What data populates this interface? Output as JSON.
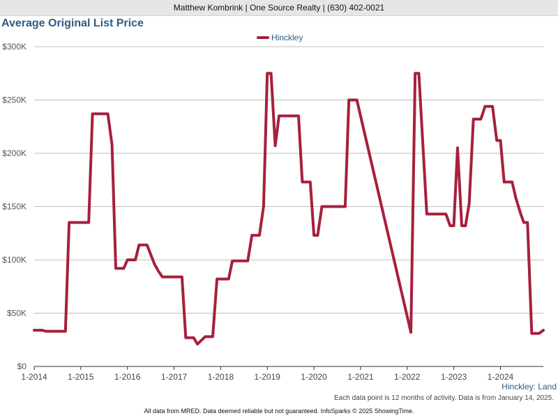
{
  "header": {
    "agent_line": "Matthew Kombrink | One Source Realty | (630) 402-0021"
  },
  "chart_data": {
    "type": "line",
    "title": "Average Original List Price",
    "xlabel": "",
    "ylabel": "",
    "ylim": [
      0,
      300000
    ],
    "xlim": [
      2014.0,
      2024.92
    ],
    "y_ticks": [
      {
        "value": 0,
        "label": "$0"
      },
      {
        "value": 50000,
        "label": "$50K"
      },
      {
        "value": 100000,
        "label": "$100K"
      },
      {
        "value": 150000,
        "label": "$150K"
      },
      {
        "value": 200000,
        "label": "$200K"
      },
      {
        "value": 250000,
        "label": "$250K"
      },
      {
        "value": 300000,
        "label": "$300K"
      }
    ],
    "x_ticks": [
      {
        "value": 2014,
        "label": "1-2014"
      },
      {
        "value": 2015,
        "label": "1-2015"
      },
      {
        "value": 2016,
        "label": "1-2016"
      },
      {
        "value": 2017,
        "label": "1-2017"
      },
      {
        "value": 2018,
        "label": "1-2018"
      },
      {
        "value": 2019,
        "label": "1-2019"
      },
      {
        "value": 2020,
        "label": "1-2020"
      },
      {
        "value": 2021,
        "label": "1-2021"
      },
      {
        "value": 2022,
        "label": "1-2022"
      },
      {
        "value": 2023,
        "label": "1-2023"
      },
      {
        "value": 2024,
        "label": "1-2024"
      }
    ],
    "grid": true,
    "legend_position": "top-center",
    "series": [
      {
        "name": "Hinckley",
        "color": "#a6203c",
        "points": [
          [
            2014.0,
            34000
          ],
          [
            2014.17,
            34000
          ],
          [
            2014.25,
            33000
          ],
          [
            2014.67,
            33000
          ],
          [
            2014.75,
            135000
          ],
          [
            2015.17,
            135000
          ],
          [
            2015.25,
            237000
          ],
          [
            2015.58,
            237000
          ],
          [
            2015.67,
            208000
          ],
          [
            2015.75,
            92000
          ],
          [
            2015.92,
            92000
          ],
          [
            2016.0,
            100000
          ],
          [
            2016.17,
            100000
          ],
          [
            2016.25,
            114000
          ],
          [
            2016.42,
            114000
          ],
          [
            2016.58,
            96000
          ],
          [
            2016.67,
            89000
          ],
          [
            2016.75,
            84000
          ],
          [
            2017.17,
            84000
          ],
          [
            2017.25,
            27000
          ],
          [
            2017.42,
            27000
          ],
          [
            2017.5,
            21000
          ],
          [
            2017.67,
            28000
          ],
          [
            2017.83,
            28000
          ],
          [
            2017.92,
            82000
          ],
          [
            2018.17,
            82000
          ],
          [
            2018.25,
            99000
          ],
          [
            2018.58,
            99000
          ],
          [
            2018.67,
            123000
          ],
          [
            2018.83,
            123000
          ],
          [
            2018.92,
            150000
          ],
          [
            2019.0,
            275000
          ],
          [
            2019.08,
            275000
          ],
          [
            2019.17,
            207000
          ],
          [
            2019.25,
            235000
          ],
          [
            2019.67,
            235000
          ],
          [
            2019.75,
            173000
          ],
          [
            2019.92,
            173000
          ],
          [
            2020.0,
            123000
          ],
          [
            2020.08,
            123000
          ],
          [
            2020.17,
            150000
          ],
          [
            2020.67,
            150000
          ],
          [
            2020.75,
            250000
          ],
          [
            2020.92,
            250000
          ],
          [
            2022.08,
            32000
          ],
          [
            2022.17,
            275000
          ],
          [
            2022.25,
            275000
          ],
          [
            2022.42,
            143000
          ],
          [
            2022.83,
            143000
          ],
          [
            2022.92,
            132000
          ],
          [
            2023.0,
            132000
          ],
          [
            2023.08,
            205000
          ],
          [
            2023.17,
            132000
          ],
          [
            2023.25,
            132000
          ],
          [
            2023.33,
            153000
          ],
          [
            2023.42,
            232000
          ],
          [
            2023.58,
            232000
          ],
          [
            2023.67,
            244000
          ],
          [
            2023.83,
            244000
          ],
          [
            2023.92,
            212000
          ],
          [
            2024.0,
            212000
          ],
          [
            2024.08,
            173000
          ],
          [
            2024.25,
            173000
          ],
          [
            2024.33,
            158000
          ],
          [
            2024.42,
            145000
          ],
          [
            2024.5,
            135000
          ],
          [
            2024.58,
            135000
          ],
          [
            2024.67,
            31000
          ],
          [
            2024.83,
            31000
          ],
          [
            2024.92,
            34000
          ]
        ]
      }
    ]
  },
  "series_caption": "Hinckley: Land",
  "note": "Each data point is 12 months of activity. Data is from January 14, 2025.",
  "footer": "All data from MRED. Data deemed reliable but not guaranteed. InfoSparks © 2025 ShowingTime."
}
